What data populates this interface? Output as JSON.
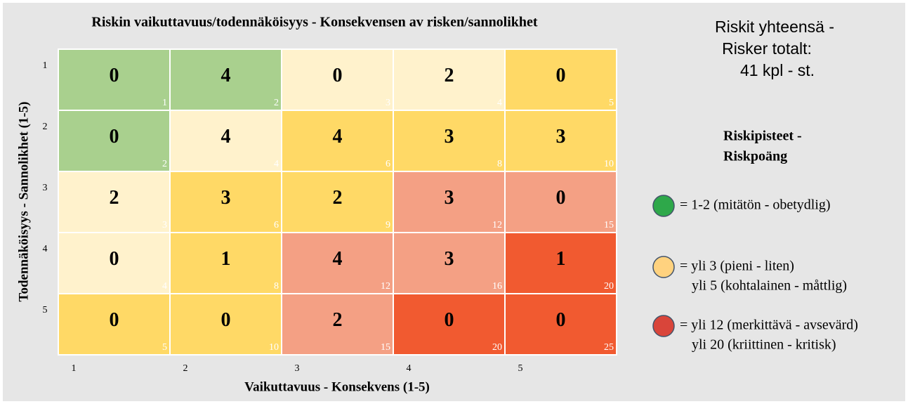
{
  "chart_data": {
    "type": "heatmap",
    "title": "Riskin vaikuttavuus/todennäköisyys - Konsekvensen av risken/sannolikhet",
    "x_label": "Vaikuttavuus - Konsekvens (1-5)",
    "y_label": "Todennäköisyys - Sannolikhet (1-5)",
    "x_categories": [
      "1",
      "2",
      "3",
      "4",
      "5"
    ],
    "y_categories": [
      "1",
      "2",
      "3",
      "4",
      "5"
    ],
    "values": [
      [
        0,
        4,
        0,
        2,
        0
      ],
      [
        0,
        4,
        4,
        3,
        3
      ],
      [
        2,
        3,
        2,
        3,
        0
      ],
      [
        0,
        1,
        4,
        3,
        1
      ],
      [
        0,
        0,
        2,
        0,
        0
      ]
    ],
    "scores": [
      [
        1,
        2,
        3,
        4,
        5
      ],
      [
        2,
        4,
        6,
        8,
        10
      ],
      [
        3,
        6,
        9,
        12,
        15
      ],
      [
        4,
        8,
        12,
        16,
        20
      ],
      [
        5,
        10,
        15,
        20,
        25
      ]
    ],
    "colors": [
      [
        "#a9d08e",
        "#a9d08e",
        "#fff2cc",
        "#fff2cc",
        "#ffd966"
      ],
      [
        "#a9d08e",
        "#fff2cc",
        "#ffd966",
        "#ffd966",
        "#ffd966"
      ],
      [
        "#fff2cc",
        "#ffd966",
        "#ffd966",
        "#f4a084",
        "#f4a084"
      ],
      [
        "#fff2cc",
        "#ffd966",
        "#f4a084",
        "#f4a084",
        "#f15a30"
      ],
      [
        "#ffd966",
        "#ffd966",
        "#f4a084",
        "#f15a30",
        "#f15a30"
      ]
    ],
    "total": [
      "Riskit yhteensä -",
      "Risker totalt:",
      "41 kpl - st."
    ],
    "legend_title": [
      "Riskipisteet -",
      "Riskpoäng"
    ],
    "legend": [
      {
        "color": "#2ea84a",
        "lines": [
          "= 1-2 (mitätön - obetydlig)"
        ]
      },
      {
        "color": "#ffd27f",
        "lines": [
          "= yli 3 (pieni - liten)",
          "yli 5 (kohtalainen - måttlig)"
        ]
      },
      {
        "color": "#d9453a",
        "lines": [
          "= yli 12 (merkittävä - avsevärd)",
          "yli 20 (kriittinen - kritisk)"
        ]
      }
    ]
  }
}
